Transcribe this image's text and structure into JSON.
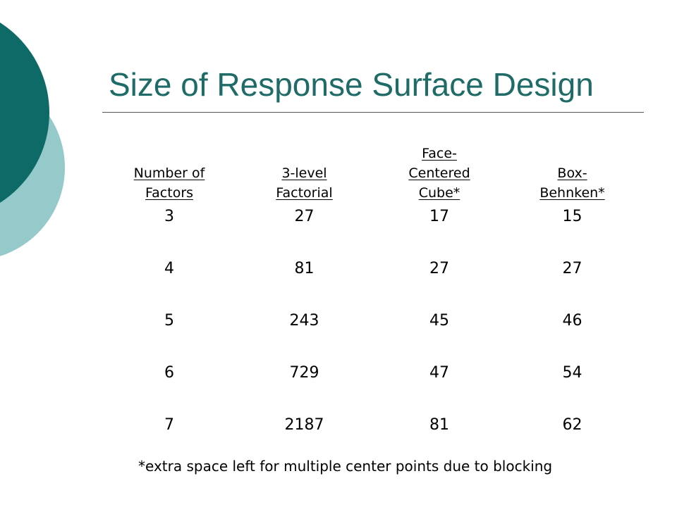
{
  "slide": {
    "title": "Size of Response Surface Design",
    "footnote": "*extra space left for multiple center points due to blocking"
  },
  "colors": {
    "title": "#1f6b67",
    "decor_dark": "#0e6a67",
    "decor_light": "#96c9c9",
    "rule": "#555555"
  },
  "table": {
    "headers": [
      {
        "lines": [
          "Number of",
          "Factors"
        ]
      },
      {
        "lines": [
          "3-level",
          "Factorial"
        ]
      },
      {
        "lines": [
          "Face-",
          "Centered",
          "Cube*"
        ]
      },
      {
        "lines": [
          "Box-",
          "Behnken*"
        ]
      }
    ],
    "rows": [
      [
        "3",
        "27",
        "17",
        "15"
      ],
      [
        "4",
        "81",
        "27",
        "27"
      ],
      [
        "5",
        "243",
        "45",
        "46"
      ],
      [
        "6",
        "729",
        "47",
        "54"
      ],
      [
        "7",
        "2187",
        "81",
        "62"
      ]
    ]
  }
}
